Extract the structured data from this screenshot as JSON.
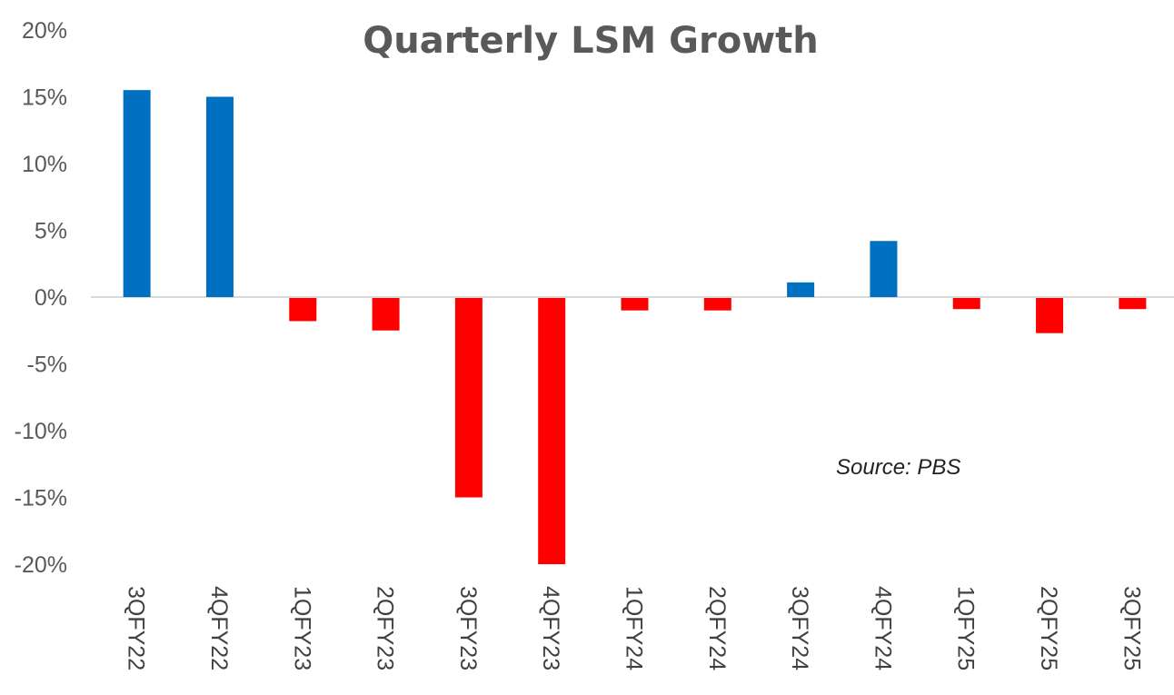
{
  "chart_data": {
    "type": "bar",
    "title": "Quarterly LSM Growth",
    "annotation": "Source: PBS",
    "categories": [
      "3QFY22",
      "4QFY22",
      "1QFY23",
      "2QFY23",
      "3QFY23",
      "4QFY23",
      "1QFY24",
      "2QFY24",
      "3QFY24",
      "4QFY24",
      "1QFY25",
      "2QFY25",
      "3QFY25"
    ],
    "values": [
      15.5,
      15.0,
      -1.8,
      -2.5,
      -15.0,
      -20.0,
      -1.0,
      -1.0,
      1.1,
      4.2,
      -0.9,
      -2.7,
      -0.9
    ],
    "ylim": [
      -20,
      20
    ],
    "yticks": [
      20,
      15,
      10,
      5,
      0,
      -5,
      -10,
      -15,
      -20
    ],
    "ytick_labels": [
      "20%",
      "15%",
      "10%",
      "5%",
      "0%",
      "-5%",
      "-10%",
      "-15%",
      "-20%"
    ],
    "xlabel": "",
    "ylabel": "",
    "grid": false,
    "legend": "none",
    "colors": {
      "positive": "#0070C0",
      "negative": "#FF0000",
      "zero_line": "#D9D9D9"
    }
  }
}
